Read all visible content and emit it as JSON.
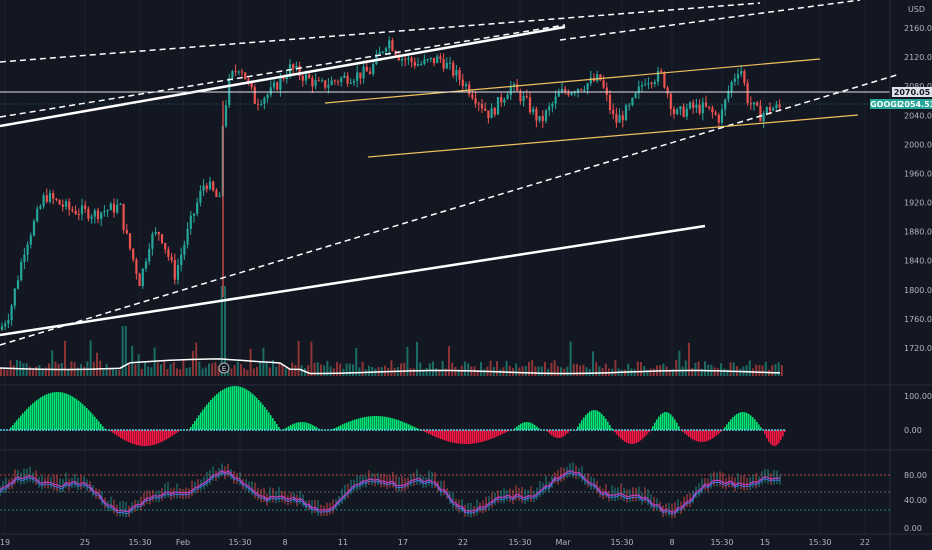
{
  "chart_data": {
    "type": "candlestick",
    "symbol": "GOOGL",
    "currency": "USD",
    "last_price": "2054.53",
    "marked_level": "2070.05",
    "price_axis_ticks": [
      2160,
      2120,
      2080,
      2040,
      2000,
      1960,
      1920,
      1880,
      1840,
      1800,
      1760,
      1720
    ],
    "price_axis_labels": [
      "2160.00",
      "2120.00",
      "2080.00",
      "2040.00",
      "2000.00",
      "1960.00",
      "1920.00",
      "1880.00",
      "1840.00",
      "1800.00",
      "1760.00",
      "1720.00"
    ],
    "time_axis_labels": [
      "19",
      "25",
      "15:30",
      "Feb",
      "15:30",
      "8",
      "11",
      "17",
      "22",
      "15:30",
      "Mar",
      "15:30",
      "8",
      "15:30",
      "15",
      "15:30",
      "22"
    ],
    "oscillator_axis_labels": [
      "100.00",
      "0.00"
    ],
    "rsi_axis_labels": [
      "80.00",
      "40.00",
      "0.00"
    ],
    "earnings_marker": "E",
    "colors": {
      "background": "#131722",
      "up": "#26a69a",
      "down": "#ef5350",
      "channel": "#f0c060",
      "trendline": "#ffffff",
      "osc_up": "#00e676",
      "osc_down": "#ff1744",
      "rsi": "#c040c0",
      "last_price_tag": "#26a69a"
    }
  }
}
